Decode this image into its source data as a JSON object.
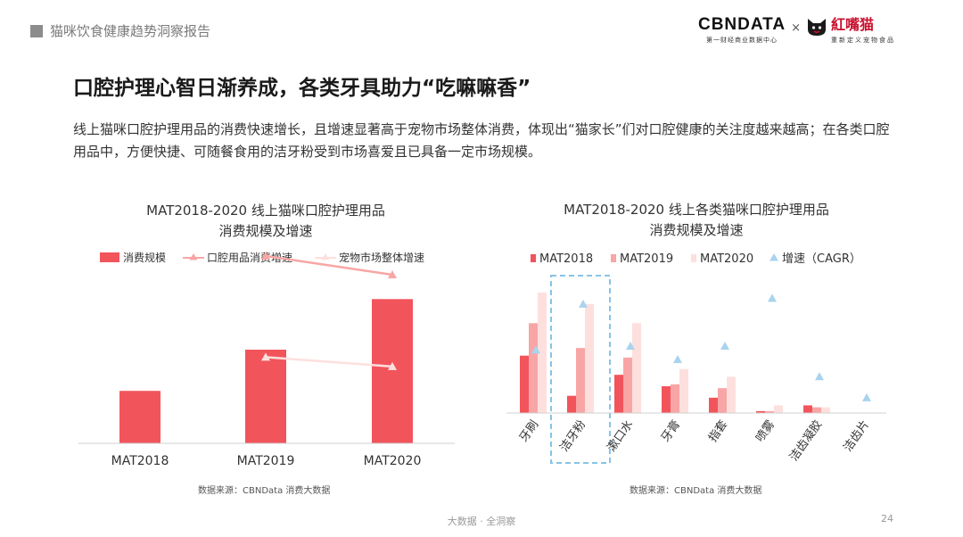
{
  "header": {
    "report_title": "猫咪饮食健康趋势洞察报告",
    "brand_cbn": "CBNDATA",
    "brand_cbn_sub": "第一财经商业数据中心",
    "brand_x": "×",
    "brand_partner": "紅嘴猫",
    "brand_partner_sub": "重新定义宠物食品"
  },
  "slide": {
    "title": "口腔护理心智日渐养成，各类牙具助力“吃嘛嘛香”",
    "description": "线上猫咪口腔护理用品的消费快速增长，且增速显著高于宠物市场整体消费，体现出“猫家长”们对口腔健康的关注度越来越高；在各类口腔用品中，方便快捷、可随餐食用的洁牙粉受到市场喜爱且已具备一定市场规模。"
  },
  "footer": {
    "text": "大数据 · 全洞察",
    "page": "24"
  },
  "colors": {
    "mat2018": "#f2545b",
    "mat2019": "#f8a5a5",
    "mat2020": "#fde0de",
    "cagr": "#a9d3ee",
    "highlight": "#86c4e8"
  },
  "chart_data": [
    {
      "type": "bar",
      "title": "MAT2018-2020 线上猫咪口腔护理用品",
      "subtitle": "消费规模及增速",
      "categories": [
        "MAT2018",
        "MAT2019",
        "MAT2020"
      ],
      "series": [
        {
          "name": "消费规模",
          "kind": "bar",
          "values": [
            28,
            50,
            77
          ]
        },
        {
          "name": "口腔用品消费增速",
          "kind": "line",
          "values": [
            null,
            100,
            90
          ]
        },
        {
          "name": "宠物市场整体增速",
          "kind": "line",
          "values": [
            null,
            46,
            41
          ]
        }
      ],
      "ylim": [
        0,
        100
      ],
      "legend": "top",
      "grid": false,
      "source": "数据来源：CBNData 消费大数据"
    },
    {
      "type": "bar",
      "title": "MAT2018-2020 线上各类猫咪口腔护理用品",
      "subtitle": "消费规模及增速",
      "categories": [
        "牙刷",
        "洁牙粉",
        "漱口水",
        "牙膏",
        "指套",
        "喷雾",
        "洁齿凝胶",
        "洁齿片"
      ],
      "series": [
        {
          "name": "MAT2018",
          "kind": "bar",
          "values": [
            30,
            9,
            20,
            14,
            8,
            1,
            4,
            0
          ]
        },
        {
          "name": "MAT2019",
          "kind": "bar",
          "values": [
            47,
            34,
            29,
            15,
            13,
            1,
            3,
            0
          ]
        },
        {
          "name": "MAT2020",
          "kind": "bar",
          "values": [
            63,
            57,
            47,
            23,
            19,
            4,
            3,
            0
          ]
        },
        {
          "name": "增速（CAGR）",
          "kind": "marker",
          "values": [
            33,
            57,
            35,
            28,
            35,
            60,
            19,
            8
          ]
        }
      ],
      "ylim": [
        0,
        70
      ],
      "highlight": "洁牙粉",
      "legend": "top",
      "grid": false,
      "source": "数据来源：CBNData 消费大数据"
    }
  ]
}
